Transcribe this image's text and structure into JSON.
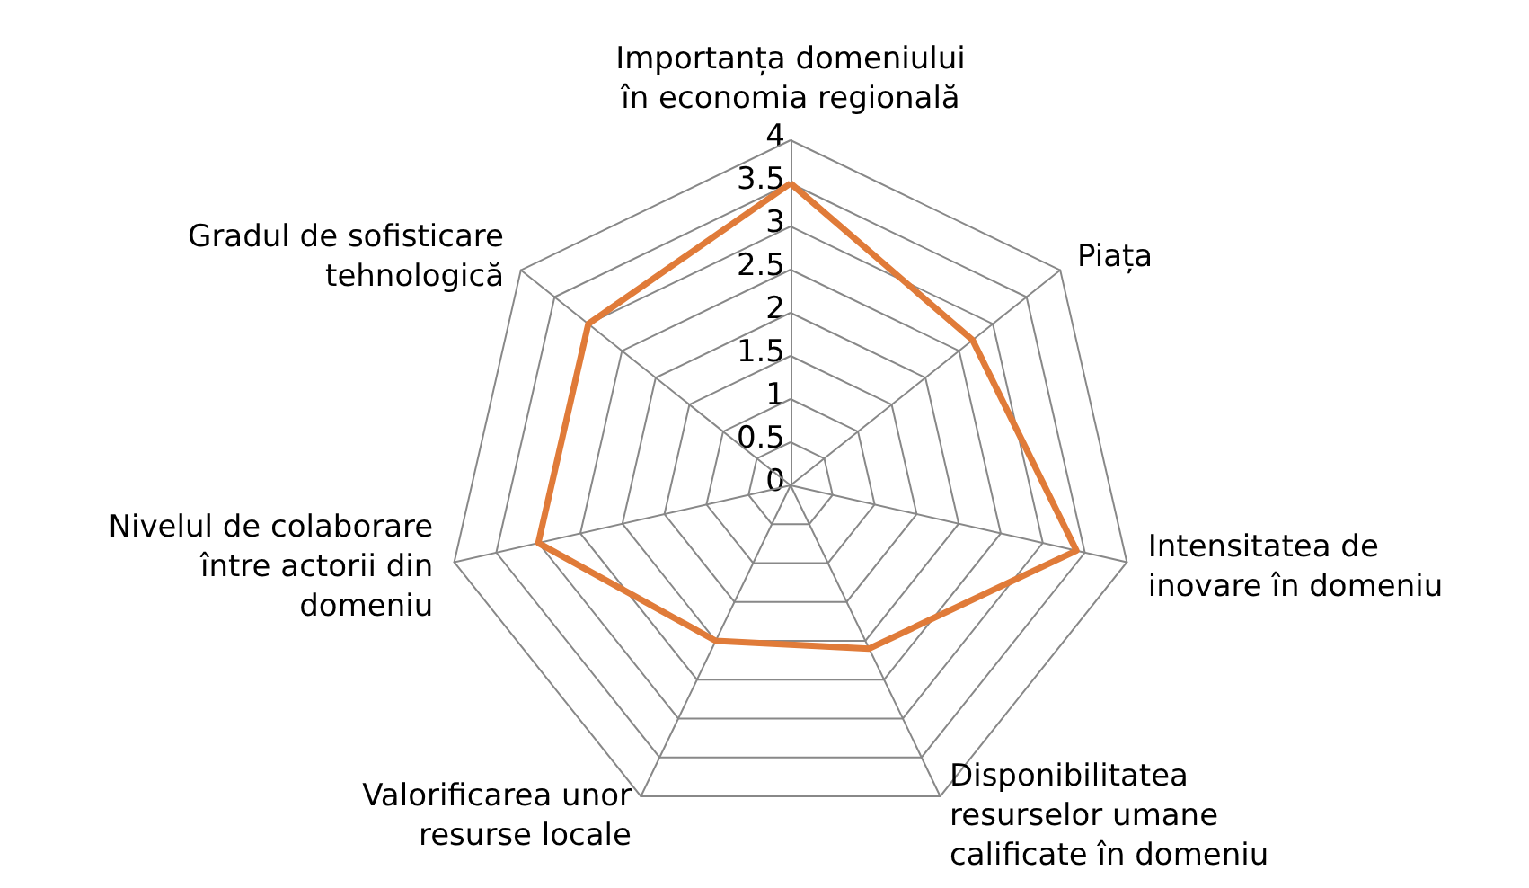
{
  "chart_data": {
    "type": "radar",
    "categories": [
      "Importanța domeniului\nîn economia regională",
      "Piața",
      "Intensitatea de\ninovare în domeniu",
      "Disponibilitatea\nresurselor umane\ncalificate în domeniu",
      "Valorificarea unor\nresurse locale",
      "Nivelul de colaborare\nîntre actorii din\ndomeniu",
      "Gradul de sofisticare\ntehnologică"
    ],
    "series": [
      {
        "color": "#e07b39",
        "values": [
          3.5,
          2.7,
          3.4,
          2.1,
          2,
          3,
          3
        ]
      }
    ],
    "ylim": [
      0,
      4
    ],
    "yticks": [
      0,
      0.5,
      1,
      1.5,
      2,
      2.5,
      3,
      3.5,
      4
    ],
    "marker": "none"
  }
}
